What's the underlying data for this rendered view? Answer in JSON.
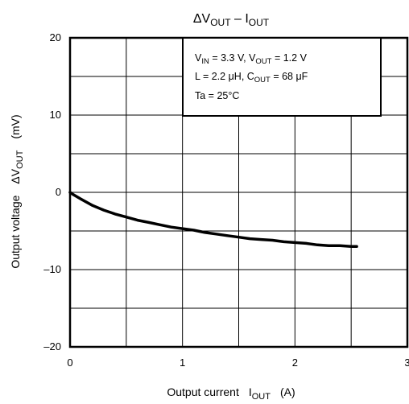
{
  "chart_data": {
    "type": "line",
    "title": {
      "prefix": "ΔV",
      "sub": "OUT",
      "sep": " – I",
      "sub2": "OUT"
    },
    "xlabel": {
      "text": "Output current",
      "sym": "I",
      "sub": "OUT",
      "unit": "(A)"
    },
    "ylabel": {
      "text": "Output voltage",
      "sym": "ΔV",
      "sub": "OUT",
      "unit": "(mV)"
    },
    "xlim": [
      0,
      3
    ],
    "ylim": [
      -20,
      20
    ],
    "xticks": [
      0,
      1,
      2,
      3
    ],
    "yticks": [
      20,
      10,
      0,
      -10,
      -20
    ],
    "xtick_labels": [
      "0",
      "1",
      "2",
      "3"
    ],
    "ytick_labels": [
      "20",
      "10",
      "0",
      "–10",
      "–20"
    ],
    "grid": true,
    "annotation": {
      "line1": {
        "a": "V",
        "a_sub": "IN",
        "b": " = 3.3 V, V",
        "b_sub": "OUT",
        "c": " = 1.2 V"
      },
      "line2": {
        "a": "L = 2.2 μH, C",
        "a_sub": "OUT",
        "b": " = 68 μF"
      },
      "line3": "Ta = 25°C"
    },
    "series": [
      {
        "x": [
          0,
          0.03,
          0.1,
          0.2,
          0.3,
          0.4,
          0.5,
          0.6,
          0.7,
          0.8,
          0.9,
          1.0,
          1.1,
          1.2,
          1.3,
          1.4,
          1.5,
          1.6,
          1.7,
          1.8,
          1.9,
          2.0,
          2.1,
          2.2,
          2.3,
          2.4,
          2.5,
          2.55
        ],
        "y": [
          0,
          -0.3,
          -0.9,
          -1.7,
          -2.3,
          -2.8,
          -3.2,
          -3.6,
          -3.9,
          -4.2,
          -4.5,
          -4.7,
          -4.9,
          -5.2,
          -5.4,
          -5.6,
          -5.8,
          -6.0,
          -6.1,
          -6.2,
          -6.4,
          -6.5,
          -6.6,
          -6.8,
          -6.9,
          -6.9,
          -7.0,
          -7.0
        ],
        "color": "#000000"
      }
    ]
  }
}
